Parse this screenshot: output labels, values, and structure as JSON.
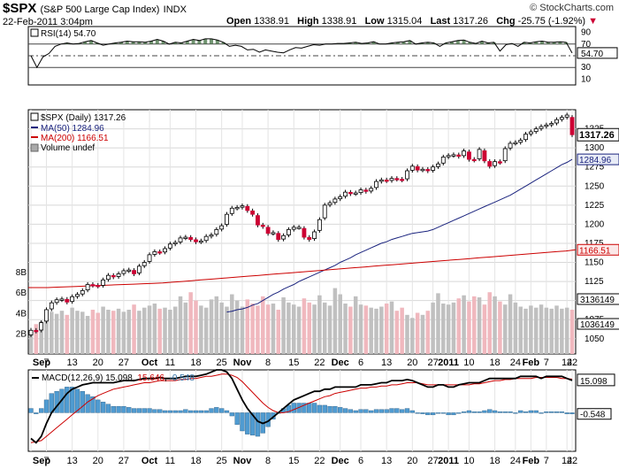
{
  "header": {
    "symbol": "$SPX",
    "name": "(S&P 500 Large Cap Index)",
    "exchange": "INDX",
    "datetime": "22-Feb-2011 3:04pm",
    "watermark": "© StockCharts.com",
    "quote": {
      "open_label": "Open",
      "open": "1338.91",
      "high_label": "High",
      "high": "1338.91",
      "low_label": "Low",
      "low": "1315.04",
      "last_label": "Last",
      "last": "1317.26",
      "chg_label": "Chg",
      "chg": "-25.75 (-1.92%)"
    }
  },
  "colors": {
    "up_candle": "#ffffff",
    "down_candle": "#cc0033",
    "candle_outline": "#000000",
    "ma50": "#1a237e",
    "ma200": "#cc0000",
    "macd": "#000000",
    "signal": "#cc0000",
    "histogram": "#4f9bd1",
    "rsi": "#000000",
    "rsi_fill": "#4e7a4e",
    "volume_up": "#c0c0c0",
    "volume_down": "#f0b8be"
  },
  "chart_data": [
    {
      "type": "line",
      "panel": "rsi",
      "legend": "RSI(14) 54.70",
      "y_ticks": [
        10,
        30,
        50,
        70,
        90
      ],
      "ylim": [
        0,
        100
      ],
      "reference_lines": [
        70,
        50,
        30
      ],
      "last_value": "54.70",
      "values": [
        50,
        30,
        48,
        54,
        66,
        70,
        72,
        70,
        71,
        74,
        76,
        72,
        68,
        70,
        72,
        73,
        75,
        74,
        74,
        73,
        75,
        78,
        75,
        70,
        73,
        72,
        75,
        78,
        76,
        79,
        79,
        77,
        73,
        66,
        68,
        66,
        60,
        61,
        56,
        60,
        58,
        56,
        55,
        60,
        64,
        63,
        66,
        69,
        68,
        70,
        70,
        71,
        71,
        72,
        73,
        71,
        72,
        74,
        70,
        70,
        72,
        73,
        74,
        76,
        70,
        72,
        73,
        72,
        66,
        72,
        74,
        76,
        77,
        73,
        71,
        75,
        72,
        73,
        58,
        69,
        71,
        66,
        73,
        72,
        74,
        75,
        73,
        73,
        74,
        73,
        54.7
      ]
    },
    {
      "type": "candlestick",
      "panel": "price",
      "legend": {
        "price": "$SPX (Daily) 1317.26",
        "ma50": "MA(50) 1284.96",
        "ma200": "MA(200) 1166.51",
        "volume": "Volume undef"
      },
      "y_ticks": [
        1050,
        1075,
        1100,
        1125,
        1150,
        1175,
        1200,
        1225,
        1250,
        1275,
        1300,
        1325
      ],
      "ylim": [
        1030,
        1350
      ],
      "price_labels": [
        "1317.26",
        "1284.96",
        "1166.51",
        "3136149",
        "1036149"
      ],
      "close": [
        1061,
        1060,
        1071,
        1088,
        1097,
        1101,
        1102,
        1098,
        1105,
        1108,
        1113,
        1121,
        1120,
        1119,
        1127,
        1133,
        1131,
        1135,
        1139,
        1140,
        1135,
        1145,
        1150,
        1160,
        1164,
        1163,
        1168,
        1174,
        1176,
        1182,
        1183,
        1180,
        1177,
        1178,
        1184,
        1186,
        1193,
        1198,
        1213,
        1221,
        1222,
        1224,
        1218,
        1213,
        1199,
        1197,
        1188,
        1189,
        1180,
        1185,
        1193,
        1196,
        1196,
        1183,
        1180,
        1190,
        1206,
        1225,
        1228,
        1233,
        1236,
        1242,
        1240,
        1241,
        1245,
        1243,
        1247,
        1256,
        1258,
        1257,
        1260,
        1259,
        1258,
        1270,
        1276,
        1271,
        1272,
        1270,
        1275,
        1279,
        1288,
        1290,
        1291,
        1289,
        1296,
        1285,
        1284,
        1298,
        1283,
        1276,
        1282,
        1281,
        1299,
        1306,
        1307,
        1310,
        1318,
        1321,
        1325,
        1328,
        1330,
        1332,
        1337,
        1340,
        1343,
        1317.26
      ],
      "ma50": [
        1085,
        1086,
        1088,
        1089,
        1091,
        1094,
        1096,
        1100,
        1104,
        1108,
        1111,
        1115,
        1118,
        1121,
        1125,
        1128,
        1131,
        1134,
        1137,
        1140,
        1143,
        1146,
        1150,
        1153,
        1156,
        1160,
        1163,
        1166,
        1169,
        1172,
        1175,
        1177,
        1180,
        1182,
        1184,
        1186,
        1188,
        1189,
        1190,
        1191,
        1193,
        1196,
        1199,
        1202,
        1205,
        1208,
        1211,
        1214,
        1217,
        1220,
        1223,
        1226,
        1229,
        1232,
        1235,
        1238,
        1242,
        1246,
        1250,
        1254,
        1258,
        1262,
        1266,
        1270,
        1274,
        1278,
        1281,
        1284.96
      ],
      "ma200": [
        1117,
        1117,
        1117,
        1117.5,
        1118,
        1118.5,
        1119,
        1119.5,
        1120,
        1120.5,
        1121,
        1121.5,
        1122,
        1122.5,
        1123,
        1124,
        1125,
        1126,
        1127,
        1128,
        1129,
        1130,
        1131,
        1132,
        1133,
        1134,
        1135,
        1136,
        1137,
        1138,
        1139,
        1140,
        1141,
        1142,
        1143,
        1144,
        1145,
        1146,
        1147,
        1148,
        1149,
        1150,
        1151,
        1152,
        1153,
        1154,
        1155,
        1156,
        1157,
        1158,
        1159,
        1160,
        1161,
        1162,
        1163,
        1164,
        1165,
        1166.51
      ],
      "volume": {
        "y_ticks": [
          "2B",
          "4B",
          "6B",
          "8B"
        ],
        "values": [
          2.1,
          2.9,
          3.2,
          4.0,
          4.1,
          3.9,
          4.2,
          3.8,
          4.5,
          4.2,
          4.1,
          3.7,
          4.3,
          4.0,
          4.6,
          4.3,
          4.2,
          4.4,
          4.1,
          4.3,
          4.8,
          4.2,
          4.5,
          4.7,
          4.9,
          4.4,
          4.5,
          4.3,
          4.6,
          5.6,
          5.0,
          6.0,
          5.2,
          4.7,
          4.5,
          5.3,
          5.6,
          5.0,
          4.6,
          5.8,
          5.2,
          4.6,
          5.3,
          4.9,
          4.7,
          5.6,
          4.8,
          4.9,
          4.3,
          5.5,
          5.0,
          4.8,
          4.6,
          5.4,
          5.0,
          4.8,
          5.7,
          5.0,
          4.7,
          6.4,
          5.8,
          4.9,
          4.6,
          5.6,
          4.8,
          4.7,
          4.5,
          4.4,
          4.6,
          4.9,
          5.1,
          4.2,
          4.5,
          3.8,
          3.5,
          4.0,
          3.8,
          4.2,
          5.0,
          5.9,
          4.9,
          4.8,
          5.0,
          5.4,
          5.7,
          5.1,
          5.6,
          5.5,
          4.8,
          6.0,
          5.6,
          5.1,
          4.8,
          5.8,
          5.0,
          4.6,
          4.4,
          4.7,
          4.5,
          4.8,
          4.5,
          4.4,
          4.7,
          4.4,
          4.5,
          4.3
        ]
      }
    },
    {
      "type": "line",
      "panel": "macd",
      "legend": {
        "label": "MACD(12,26,9)",
        "macd": "15.098",
        "signal": "15.646",
        "hist": "-0.548"
      },
      "ylim": [
        -18,
        20
      ],
      "price_labels": [
        "15.098",
        "-0.548"
      ],
      "macd": [
        -12,
        -14,
        -11,
        -5,
        0,
        3,
        6,
        9,
        11,
        12,
        13,
        13.5,
        14,
        14,
        14,
        14,
        14,
        14.5,
        15,
        15,
        15,
        15.5,
        16,
        16,
        16,
        16.5,
        16,
        16,
        16,
        16.5,
        17,
        17,
        17,
        17.5,
        18,
        19,
        20,
        20,
        19,
        16,
        11,
        6,
        2,
        -1,
        -4,
        -5,
        -4,
        -2,
        0,
        2,
        4,
        6,
        7,
        8,
        9,
        10,
        10,
        11,
        11,
        12,
        12,
        12,
        12,
        12,
        13,
        13,
        13,
        13.5,
        14,
        14,
        15,
        15,
        15,
        15.5,
        15,
        14,
        13,
        12,
        12,
        13,
        13,
        12,
        12,
        13,
        13.5,
        14,
        14,
        14,
        15,
        16,
        16,
        16,
        16,
        16,
        16,
        17,
        17,
        17,
        17,
        16,
        17,
        17,
        17,
        17,
        16,
        15.098
      ],
      "signal": [
        -14,
        -13.5,
        -13,
        -11,
        -9,
        -7,
        -5,
        -3,
        -1,
        1,
        3,
        5,
        6.5,
        8,
        9,
        10,
        11,
        11.5,
        12,
        12.5,
        13,
        13.5,
        14,
        14,
        14.5,
        15,
        15,
        15,
        15,
        15.5,
        15.5,
        16,
        16,
        16.5,
        17,
        17,
        17.5,
        18,
        18,
        17.5,
        16.5,
        14.5,
        12,
        9.5,
        7,
        4.5,
        2.5,
        1,
        0,
        0,
        0.5,
        1.5,
        2.5,
        3.5,
        4.5,
        5.5,
        6.5,
        7.5,
        8,
        9,
        9.5,
        10,
        10.5,
        11,
        11.5,
        11.5,
        12,
        12,
        12.5,
        12.5,
        13,
        13,
        13.5,
        14,
        14,
        14,
        13.5,
        13,
        13,
        13,
        13,
        13,
        13,
        13,
        13,
        13,
        13.5,
        13.5,
        14,
        14.5,
        15,
        15,
        15.5,
        15.5,
        16,
        16,
        16,
        16,
        16.5,
        16.5,
        16.5,
        16.5,
        16.5,
        16,
        16,
        15.646
      ],
      "histogram": [
        2,
        -0.5,
        2,
        6,
        9,
        10,
        11,
        12,
        12,
        11,
        10,
        8.5,
        7.5,
        6,
        5,
        4,
        3,
        3,
        3,
        2.5,
        2,
        2,
        2,
        2,
        1.5,
        1.5,
        1,
        1,
        1,
        1,
        1.5,
        1,
        1,
        1,
        1,
        2,
        2.5,
        2,
        1,
        -1.5,
        -5.5,
        -8.5,
        -10,
        -10.5,
        -11,
        -9.5,
        -6.5,
        -3,
        0,
        2,
        3.5,
        4.5,
        4.5,
        4.5,
        4.5,
        4.5,
        3.5,
        3.5,
        3,
        3,
        2.5,
        2,
        1.5,
        1,
        1.5,
        1.5,
        1,
        1.5,
        1.5,
        1.5,
        2,
        2,
        1.5,
        2,
        1,
        0,
        -0.5,
        -1,
        -1,
        0,
        0,
        -1,
        -1,
        0,
        0.5,
        1,
        0.5,
        0.5,
        1,
        1.5,
        1,
        0.5,
        0.5,
        0.5,
        0,
        1,
        0.5,
        1,
        1,
        0,
        0.5,
        0.5,
        0.5,
        0.5,
        -0.5,
        -0.548
      ]
    }
  ],
  "x_axis": {
    "labels": [
      "Sep",
      "7",
      "13",
      "20",
      "27",
      "Oct",
      "11",
      "18",
      "25",
      "Nov",
      "8",
      "15",
      "22",
      "Dec",
      "6",
      "13",
      "20",
      "27",
      "2011",
      "10",
      "18",
      "24",
      "Feb",
      "7",
      "14",
      "22"
    ],
    "bold": [
      "Sep",
      "Oct",
      "Nov",
      "Dec",
      "2011",
      "Feb"
    ]
  }
}
